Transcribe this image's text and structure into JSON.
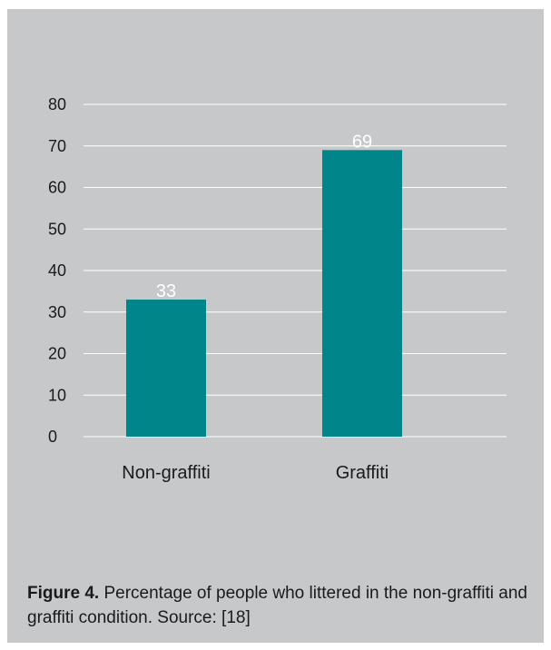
{
  "chart_data": {
    "type": "bar",
    "categories": [
      "Non-graffiti",
      "Graffiti"
    ],
    "values": [
      33,
      69
    ],
    "data_labels": [
      "33",
      "69"
    ],
    "ylim": [
      0,
      80
    ],
    "yticks": [
      0,
      10,
      20,
      30,
      40,
      50,
      60,
      70,
      80
    ],
    "grid": true,
    "legend": "none",
    "title": "",
    "xlabel": "",
    "ylabel": ""
  },
  "caption": {
    "title": "Figure 4.",
    "text": " Percentage of people who littered in the non-graffiti and graffiti condition. Source: [18]"
  },
  "colors": {
    "bar": "#00858a",
    "background": "#c7c8ca",
    "gridline": "#ffffff",
    "data_label": "#ffffff"
  }
}
